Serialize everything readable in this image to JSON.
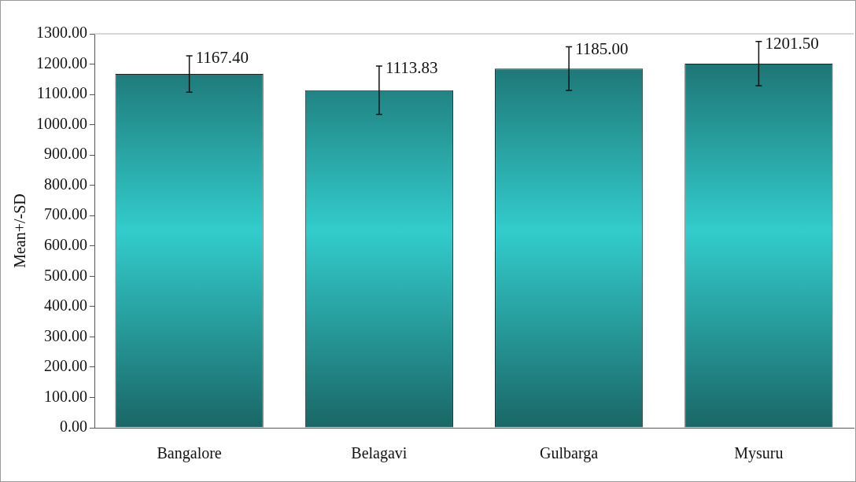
{
  "chart_data": {
    "type": "bar",
    "ylabel": "Mean+/-SD",
    "categories": [
      "Bangalore",
      "Belagavi",
      "Gulbarga",
      "Mysuru"
    ],
    "values": [
      1167.4,
      1113.83,
      1185.0,
      1201.5
    ],
    "errors": [
      60,
      80,
      72,
      73
    ],
    "color": "#33cccc",
    "ylim": [
      0,
      1300
    ],
    "yticks": [
      {
        "value": 0,
        "label": "0.00"
      },
      {
        "value": 100,
        "label": "100.00"
      },
      {
        "value": 200,
        "label": "200.00"
      },
      {
        "value": 300,
        "label": "300.00"
      },
      {
        "value": 400,
        "label": "400.00"
      },
      {
        "value": 500,
        "label": "500.00"
      },
      {
        "value": 600,
        "label": "600.00"
      },
      {
        "value": 700,
        "label": "700.00"
      },
      {
        "value": 800,
        "label": "800.00"
      },
      {
        "value": 900,
        "label": "900.00"
      },
      {
        "value": 1000,
        "label": "1000.00"
      },
      {
        "value": 1100,
        "label": "1100.00"
      },
      {
        "value": 1200,
        "label": "1200.00"
      },
      {
        "value": 1300,
        "label": "1300.00"
      }
    ],
    "value_labels": [
      "1167.40",
      "1113.83",
      "1185.00",
      "1201.50"
    ],
    "grid": false,
    "legend": false
  }
}
